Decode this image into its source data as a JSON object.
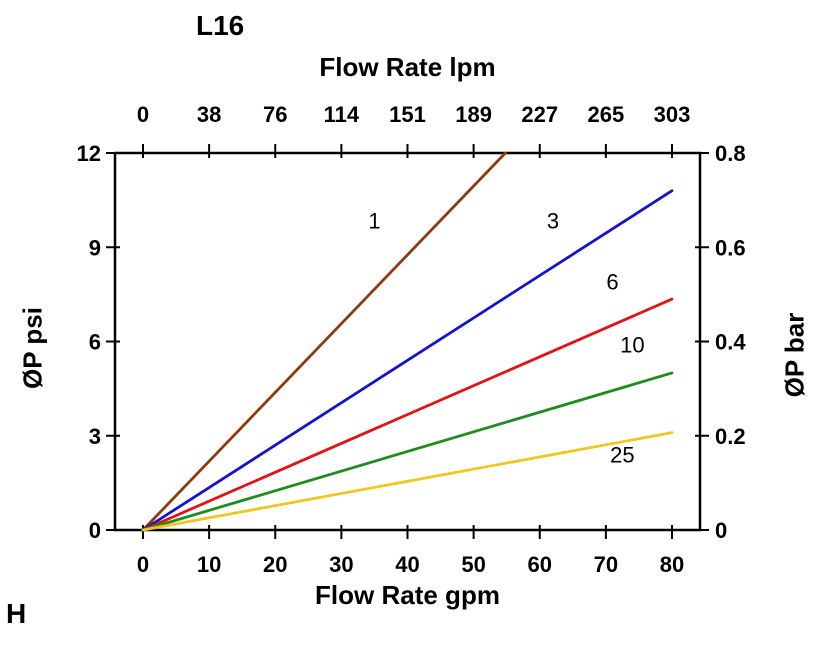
{
  "page": {
    "corner_label": "H"
  },
  "chart_data": {
    "type": "line",
    "title": "L16",
    "axes": {
      "top": {
        "label": "Flow Rate lpm",
        "ticks": [
          0,
          38,
          76,
          114,
          151,
          189,
          227,
          265,
          303
        ]
      },
      "bottom": {
        "label": "Flow Rate gpm",
        "ticks": [
          0,
          10,
          20,
          30,
          40,
          50,
          60,
          70,
          80
        ],
        "range": [
          0,
          80
        ]
      },
      "left": {
        "label": "ØP psi",
        "ticks": [
          0,
          3,
          6,
          9,
          12
        ],
        "range": [
          0,
          12
        ]
      },
      "right": {
        "label": "ØP bar",
        "ticks": [
          0,
          0.2,
          0.4,
          0.6,
          0.8
        ],
        "range": [
          0,
          0.8
        ]
      }
    },
    "grid": false,
    "series": [
      {
        "name": "1",
        "color": "#8E3A0E",
        "points": [
          [
            0,
            0
          ],
          [
            54.8,
            12
          ]
        ],
        "label_pos": [
          35,
          9.6
        ]
      },
      {
        "name": "3",
        "color": "#1414CC",
        "points": [
          [
            0,
            0
          ],
          [
            80,
            10.8
          ]
        ],
        "label_pos": [
          62,
          9.6
        ]
      },
      {
        "name": "6",
        "color": "#E01414",
        "points": [
          [
            0,
            0
          ],
          [
            80,
            7.35
          ]
        ],
        "label_pos": [
          71,
          7.65
        ]
      },
      {
        "name": "10",
        "color": "#1E8C1E",
        "points": [
          [
            0,
            0
          ],
          [
            80,
            5.0
          ]
        ],
        "label_pos": [
          74,
          5.65
        ]
      },
      {
        "name": "25",
        "color": "#F2C61E",
        "points": [
          [
            0,
            0
          ],
          [
            80,
            3.1
          ]
        ],
        "label_pos": [
          72.5,
          2.15
        ]
      }
    ]
  }
}
